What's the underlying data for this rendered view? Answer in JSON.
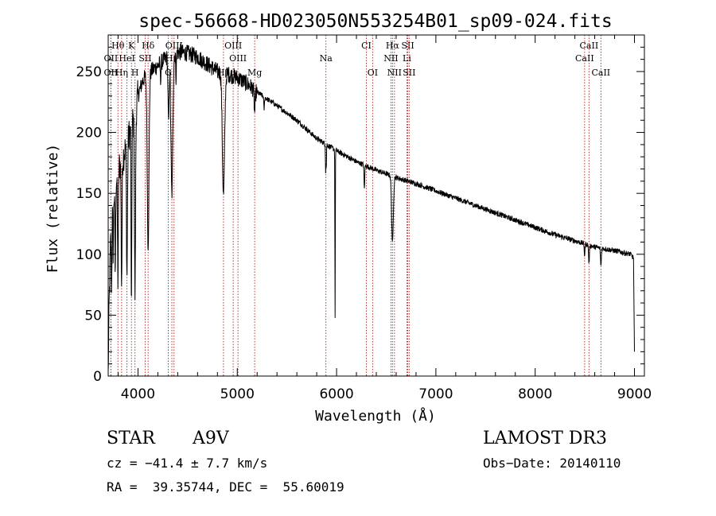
{
  "chart_data": {
    "type": "line",
    "title": "spec-56668-HD023050N553254B01_sp09-024.fits",
    "xlabel": "Wavelength (Å)",
    "ylabel": "Flux (relative)",
    "xlim": [
      3700,
      9100
    ],
    "ylim": [
      0,
      280
    ],
    "xticks": [
      4000,
      5000,
      6000,
      7000,
      8000,
      9000
    ],
    "yticks": [
      0,
      50,
      100,
      150,
      200,
      250
    ],
    "series": [
      {
        "name": "flux",
        "continuum": [
          [
            3700,
            0
          ],
          [
            3710,
            60
          ],
          [
            3730,
            130
          ],
          [
            3760,
            150
          ],
          [
            3800,
            170
          ],
          [
            3850,
            180
          ],
          [
            3900,
            195
          ],
          [
            3950,
            210
          ],
          [
            4000,
            230
          ],
          [
            4050,
            243
          ],
          [
            4100,
            248
          ],
          [
            4200,
            255
          ],
          [
            4300,
            262
          ],
          [
            4400,
            266
          ],
          [
            4500,
            265
          ],
          [
            4600,
            262
          ],
          [
            4700,
            256
          ],
          [
            4800,
            250
          ],
          [
            4900,
            248
          ],
          [
            5000,
            245
          ],
          [
            5100,
            240
          ],
          [
            5200,
            233
          ],
          [
            5400,
            222
          ],
          [
            5600,
            210
          ],
          [
            5800,
            195
          ],
          [
            6000,
            185
          ],
          [
            6200,
            176
          ],
          [
            6400,
            169
          ],
          [
            6600,
            163
          ],
          [
            6800,
            158
          ],
          [
            7000,
            152
          ],
          [
            7200,
            146
          ],
          [
            7400,
            140
          ],
          [
            7600,
            134
          ],
          [
            7800,
            128
          ],
          [
            8000,
            122
          ],
          [
            8200,
            116
          ],
          [
            8400,
            111
          ],
          [
            8600,
            106
          ],
          [
            8800,
            103
          ],
          [
            8960,
            100
          ],
          [
            8990,
            97
          ],
          [
            9000,
            20
          ]
        ],
        "absorption_lines": [
          [
            3734,
            60,
            5
          ],
          [
            3750,
            40,
            5
          ],
          [
            3771,
            70,
            5
          ],
          [
            3798,
            90,
            6
          ],
          [
            3835,
            100,
            6
          ],
          [
            3889,
            110,
            7
          ],
          [
            3934,
            160,
            5
          ],
          [
            3970,
            150,
            8
          ],
          [
            4102,
            140,
            12
          ],
          [
            4227,
            15,
            4
          ],
          [
            4308,
            55,
            8
          ],
          [
            4341,
            115,
            13
          ],
          [
            4383,
            20,
            5
          ],
          [
            4861,
            100,
            16
          ],
          [
            5175,
            18,
            8
          ],
          [
            5270,
            10,
            5
          ],
          [
            5890,
            22,
            3
          ],
          [
            5896,
            20,
            3
          ],
          [
            5985,
            140,
            3
          ],
          [
            6280,
            20,
            5
          ],
          [
            6563,
            55,
            12
          ],
          [
            8498,
            10,
            5
          ],
          [
            8542,
            15,
            6
          ],
          [
            8662,
            15,
            6
          ]
        ]
      }
    ],
    "line_markers": [
      {
        "name": "Hθ",
        "wavelength": 3798,
        "row": 0
      },
      {
        "name": "K",
        "wavelength": 3934,
        "row": 0
      },
      {
        "name": "Hδ",
        "wavelength": 4102,
        "row": 0
      },
      {
        "name": "OIII",
        "wavelength": 4363,
        "row": 0
      },
      {
        "name": "OIII",
        "wavelength": 4959,
        "row": 0
      },
      {
        "name": "CI",
        "wavelength": 6300,
        "row": 0
      },
      {
        "name": "Hα",
        "wavelength": 6563,
        "row": 0
      },
      {
        "name": "SII",
        "wavelength": 6717,
        "row": 0
      },
      {
        "name": "CaII",
        "wavelength": 8542,
        "row": 0
      },
      {
        "name": "OII",
        "wavelength": 3727,
        "row": 1
      },
      {
        "name": "HeI",
        "wavelength": 3889,
        "row": 1
      },
      {
        "name": "SII",
        "wavelength": 4072,
        "row": 1
      },
      {
        "name": "Hγ",
        "wavelength": 4341,
        "row": 1
      },
      {
        "name": "OIII",
        "wavelength": 5007,
        "row": 1
      },
      {
        "name": "Na",
        "wavelength": 5893,
        "row": 1
      },
      {
        "name": "NII",
        "wavelength": 6548,
        "row": 1
      },
      {
        "name": "Li",
        "wavelength": 6708,
        "row": 1
      },
      {
        "name": "CaII",
        "wavelength": 8498,
        "row": 1
      },
      {
        "name": "OII",
        "wavelength": 3727,
        "row": 2
      },
      {
        "name": "Hη",
        "wavelength": 3835,
        "row": 2
      },
      {
        "name": "H",
        "wavelength": 3970,
        "row": 2
      },
      {
        "name": "G",
        "wavelength": 4305,
        "row": 2
      },
      {
        "name": "Hβ",
        "wavelength": 4861,
        "row": 2
      },
      {
        "name": "Mg",
        "wavelength": 5175,
        "row": 2
      },
      {
        "name": "OI",
        "wavelength": 6363,
        "row": 2
      },
      {
        "name": "NII",
        "wavelength": 6583,
        "row": 2
      },
      {
        "name": "SII",
        "wavelength": 6731,
        "row": 2
      },
      {
        "name": "CaII",
        "wavelength": 8662,
        "row": 2
      }
    ]
  },
  "info": {
    "object_class": "STAR",
    "subclass": "A9V",
    "survey": "LAMOST DR3",
    "cz_line": "cz = −41.4 ± 7.7 km/s",
    "obs_date": "Obs−Date: 20140110",
    "coords": "RA =  39.35744, DEC =  55.60019"
  },
  "colors": {
    "spectrum": "#000000",
    "marker": "#b22222",
    "axis": "#000000"
  }
}
